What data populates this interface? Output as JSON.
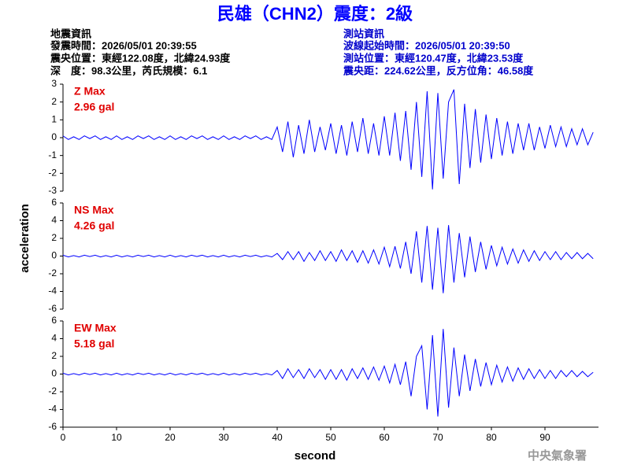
{
  "header": {
    "title": "民雄（CHN2）震度：2級",
    "left": [
      "地震資訊",
      "發震時間：2026/05/01 20:39:55",
      "震央位置：東經122.08度，北緯24.93度",
      "深　度：98.3公里，芮氏規模：6.1"
    ],
    "right": [
      "測站資訊",
      "波線起始時間：2026/05/01 20:39:50",
      "測站位置：東經120.47度，北緯23.53度",
      "震央距：224.62公里，反方位角：46.58度"
    ]
  },
  "ylabel": "acceleration",
  "xlabel": "second",
  "footer": "中央氣象署",
  "chart_data": [
    {
      "type": "line",
      "annotations": [
        "Z Max",
        "2.96 gal"
      ],
      "xlim": [
        0,
        100
      ],
      "ylim": [
        -3,
        3
      ],
      "yticks": [
        -3,
        -2,
        -1,
        0,
        1,
        2,
        3
      ],
      "x": [
        0,
        1,
        2,
        3,
        4,
        5,
        6,
        7,
        8,
        9,
        10,
        11,
        12,
        13,
        14,
        15,
        16,
        17,
        18,
        19,
        20,
        21,
        22,
        23,
        24,
        25,
        26,
        27,
        28,
        29,
        30,
        31,
        32,
        33,
        34,
        35,
        36,
        37,
        38,
        39,
        40,
        41,
        42,
        43,
        44,
        45,
        46,
        47,
        48,
        49,
        50,
        51,
        52,
        53,
        54,
        55,
        56,
        57,
        58,
        59,
        60,
        61,
        62,
        63,
        64,
        65,
        66,
        67,
        68,
        69,
        70,
        71,
        72,
        73,
        74,
        75,
        76,
        77,
        78,
        79,
        80,
        81,
        82,
        83,
        84,
        85,
        86,
        87,
        88,
        89,
        90,
        91,
        92,
        93,
        94,
        95,
        96,
        97,
        98,
        99
      ],
      "series": [
        {
          "color": "#0000ff",
          "values": [
            0.1,
            -0.1,
            0.05,
            -0.1,
            0.1,
            -0.05,
            0.1,
            -0.1,
            0.05,
            -0.1,
            0.1,
            -0.1,
            0.05,
            -0.1,
            0.1,
            -0.05,
            0.1,
            -0.1,
            0.05,
            -0.1,
            0.1,
            -0.1,
            0.05,
            -0.1,
            0.1,
            -0.05,
            0.1,
            -0.1,
            0.05,
            -0.1,
            0.1,
            -0.1,
            0.05,
            -0.1,
            0.1,
            -0.05,
            0.1,
            -0.1,
            0.05,
            -0.1,
            0.6,
            -0.8,
            0.9,
            -1.1,
            0.7,
            -0.9,
            1.0,
            -0.8,
            0.6,
            -0.7,
            0.8,
            -0.9,
            0.7,
            -1.0,
            0.9,
            -0.8,
            1.1,
            -0.9,
            0.8,
            -1.0,
            1.2,
            -1.0,
            1.4,
            -1.3,
            1.5,
            -1.8,
            2.0,
            -2.2,
            2.6,
            -2.9,
            2.5,
            -2.3,
            2.0,
            2.7,
            -2.6,
            1.9,
            -1.7,
            1.6,
            -1.4,
            1.3,
            -1.2,
            1.1,
            -1.0,
            0.9,
            -0.9,
            0.8,
            -0.7,
            0.8,
            -0.7,
            0.6,
            -0.6,
            0.7,
            -0.5,
            0.6,
            -0.5,
            0.5,
            -0.4,
            0.5,
            -0.4,
            0.3
          ]
        }
      ]
    },
    {
      "type": "line",
      "annotations": [
        "NS Max",
        "4.26 gal"
      ],
      "xlim": [
        0,
        100
      ],
      "ylim": [
        -6,
        6
      ],
      "yticks": [
        -6,
        -4,
        -2,
        0,
        2,
        4,
        6
      ],
      "x": [
        0,
        1,
        2,
        3,
        4,
        5,
        6,
        7,
        8,
        9,
        10,
        11,
        12,
        13,
        14,
        15,
        16,
        17,
        18,
        19,
        20,
        21,
        22,
        23,
        24,
        25,
        26,
        27,
        28,
        29,
        30,
        31,
        32,
        33,
        34,
        35,
        36,
        37,
        38,
        39,
        40,
        41,
        42,
        43,
        44,
        45,
        46,
        47,
        48,
        49,
        50,
        51,
        52,
        53,
        54,
        55,
        56,
        57,
        58,
        59,
        60,
        61,
        62,
        63,
        64,
        65,
        66,
        67,
        68,
        69,
        70,
        71,
        72,
        73,
        74,
        75,
        76,
        77,
        78,
        79,
        80,
        81,
        82,
        83,
        84,
        85,
        86,
        87,
        88,
        89,
        90,
        91,
        92,
        93,
        94,
        95,
        96,
        97,
        98,
        99
      ],
      "series": [
        {
          "color": "#0000ff",
          "values": [
            0.1,
            -0.1,
            0.05,
            -0.1,
            0.1,
            -0.05,
            0.1,
            -0.1,
            0.05,
            -0.1,
            0.1,
            -0.1,
            0.05,
            -0.1,
            0.1,
            -0.05,
            0.1,
            -0.1,
            0.05,
            -0.1,
            0.1,
            -0.1,
            0.05,
            -0.1,
            0.1,
            -0.05,
            0.1,
            -0.1,
            0.05,
            -0.1,
            0.1,
            -0.1,
            0.05,
            -0.1,
            0.1,
            -0.05,
            0.1,
            -0.1,
            0.05,
            -0.1,
            0.3,
            -0.4,
            0.5,
            -0.4,
            0.5,
            -0.6,
            0.4,
            -0.5,
            0.6,
            -0.5,
            0.5,
            -0.6,
            0.7,
            -0.5,
            0.6,
            -0.7,
            0.6,
            -0.8,
            0.7,
            -0.9,
            1.0,
            -1.2,
            1.1,
            -1.4,
            1.6,
            -2.0,
            2.8,
            -3.0,
            3.4,
            -3.8,
            3.2,
            -4.2,
            3.5,
            -3.0,
            2.6,
            -2.4,
            2.2,
            -1.8,
            1.6,
            -1.5,
            1.2,
            -1.1,
            1.0,
            -0.9,
            0.8,
            -0.8,
            0.7,
            -0.6,
            0.6,
            -0.5,
            0.5,
            -0.4,
            0.5,
            -0.4,
            0.4,
            -0.3,
            0.4,
            -0.3,
            0.3,
            -0.3
          ]
        }
      ]
    },
    {
      "type": "line",
      "annotations": [
        "EW Max",
        "5.18 gal"
      ],
      "xlim": [
        0,
        100
      ],
      "xticks": [
        0,
        10,
        20,
        30,
        40,
        50,
        60,
        70,
        80,
        90
      ],
      "ylim": [
        -6,
        6
      ],
      "yticks": [
        -6,
        -4,
        -2,
        0,
        2,
        4,
        6
      ],
      "x": [
        0,
        1,
        2,
        3,
        4,
        5,
        6,
        7,
        8,
        9,
        10,
        11,
        12,
        13,
        14,
        15,
        16,
        17,
        18,
        19,
        20,
        21,
        22,
        23,
        24,
        25,
        26,
        27,
        28,
        29,
        30,
        31,
        32,
        33,
        34,
        35,
        36,
        37,
        38,
        39,
        40,
        41,
        42,
        43,
        44,
        45,
        46,
        47,
        48,
        49,
        50,
        51,
        52,
        53,
        54,
        55,
        56,
        57,
        58,
        59,
        60,
        61,
        62,
        63,
        64,
        65,
        66,
        67,
        68,
        69,
        70,
        71,
        72,
        73,
        74,
        75,
        76,
        77,
        78,
        79,
        80,
        81,
        82,
        83,
        84,
        85,
        86,
        87,
        88,
        89,
        90,
        91,
        92,
        93,
        94,
        95,
        96,
        97,
        98,
        99
      ],
      "series": [
        {
          "color": "#0000ff",
          "values": [
            0.1,
            -0.1,
            0.05,
            -0.1,
            0.1,
            -0.05,
            0.1,
            -0.1,
            0.05,
            -0.1,
            0.1,
            -0.1,
            0.05,
            -0.1,
            0.1,
            -0.05,
            0.1,
            -0.1,
            0.05,
            -0.1,
            0.1,
            -0.1,
            0.05,
            -0.1,
            0.1,
            -0.05,
            0.1,
            -0.1,
            0.05,
            -0.1,
            0.1,
            -0.1,
            0.05,
            -0.1,
            0.1,
            -0.05,
            0.1,
            -0.1,
            0.05,
            -0.1,
            0.4,
            -0.5,
            0.6,
            -0.4,
            0.5,
            -0.5,
            0.6,
            -0.4,
            0.5,
            -0.6,
            0.5,
            -0.6,
            0.5,
            -0.7,
            0.6,
            -0.5,
            0.7,
            -0.6,
            0.8,
            -0.7,
            0.9,
            -1.0,
            1.1,
            -1.2,
            1.4,
            -2.5,
            2.0,
            3.2,
            -4.0,
            4.4,
            -4.8,
            5.1,
            -3.8,
            3.0,
            -2.5,
            2.2,
            -1.9,
            1.7,
            -1.4,
            1.3,
            -1.2,
            1.0,
            -0.9,
            0.8,
            -0.8,
            0.7,
            -0.6,
            0.6,
            -0.5,
            0.5,
            -0.5,
            0.4,
            -0.5,
            0.4,
            -0.3,
            0.4,
            -0.3,
            0.3,
            -0.3,
            0.2
          ]
        }
      ]
    }
  ]
}
